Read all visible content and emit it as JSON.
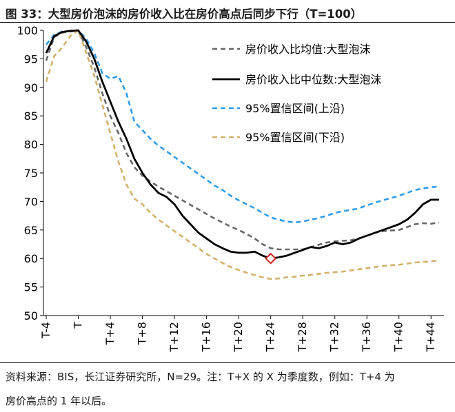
{
  "title": "图 33：大型房价泡沫的房价收入比在房价高点后同步下行（T=100）",
  "notes": [
    "资料来源：BIS，长江证券研究所，N=29。注：T+X 的 X 为季度数，例如：T+4 为",
    "房价高点的 1 年以后。"
  ],
  "chart_data": {
    "type": "line",
    "ylim": [
      50,
      100
    ],
    "yticks": [
      50,
      55,
      60,
      65,
      70,
      75,
      80,
      85,
      90,
      95,
      100
    ],
    "xlim": [
      -4,
      45
    ],
    "xticks": [
      {
        "x": -4,
        "label": "T-4"
      },
      {
        "x": 0,
        "label": "T"
      },
      {
        "x": 4,
        "label": "T+4"
      },
      {
        "x": 8,
        "label": "T+8"
      },
      {
        "x": 12,
        "label": "T+12"
      },
      {
        "x": 16,
        "label": "T+16"
      },
      {
        "x": 20,
        "label": "T+20"
      },
      {
        "x": 24,
        "label": "T+24"
      },
      {
        "x": 28,
        "label": "T+28"
      },
      {
        "x": 32,
        "label": "T+32"
      },
      {
        "x": 36,
        "label": "T+36"
      },
      {
        "x": 40,
        "label": "T+40"
      },
      {
        "x": 44,
        "label": "T+44"
      }
    ],
    "legend_position": "top-right",
    "series": [
      {
        "name": "房价收入比均值:大型泡沫",
        "color": "#666666",
        "style": "dashed",
        "points": [
          [
            -4,
            94.7
          ],
          [
            -3,
            98.8
          ],
          [
            -2,
            99.6
          ],
          [
            -1,
            99.8
          ],
          [
            0,
            100
          ],
          [
            1,
            97
          ],
          [
            2,
            93.5
          ],
          [
            3,
            89
          ],
          [
            4,
            85
          ],
          [
            5,
            82
          ],
          [
            6,
            78.5
          ],
          [
            7,
            76
          ],
          [
            8,
            74.5
          ],
          [
            9,
            73.5
          ],
          [
            10,
            72.6
          ],
          [
            11,
            71.8
          ],
          [
            12,
            71
          ],
          [
            13,
            70.2
          ],
          [
            14,
            69.4
          ],
          [
            15,
            68.6
          ],
          [
            16,
            67.8
          ],
          [
            17,
            67
          ],
          [
            18,
            66.3
          ],
          [
            19,
            65.6
          ],
          [
            20,
            65
          ],
          [
            21,
            64.3
          ],
          [
            22,
            63.5
          ],
          [
            23,
            62.5
          ],
          [
            24,
            61.8
          ],
          [
            25,
            61.6
          ],
          [
            26,
            61.6
          ],
          [
            27,
            61.6
          ],
          [
            28,
            61.6
          ],
          [
            29,
            62
          ],
          [
            30,
            62.4
          ],
          [
            31,
            62.8
          ],
          [
            32,
            63
          ],
          [
            33,
            63.1
          ],
          [
            34,
            63.2
          ],
          [
            35,
            63.5
          ],
          [
            36,
            64
          ],
          [
            37,
            64.5
          ],
          [
            38,
            64.8
          ],
          [
            39,
            64.9
          ],
          [
            40,
            65
          ],
          [
            41,
            65.5
          ],
          [
            42,
            66
          ],
          [
            43,
            66.2
          ],
          [
            44,
            66.1
          ],
          [
            45,
            66.3
          ]
        ]
      },
      {
        "name": "房价收入比中位数:大型泡沫",
        "color": "#000000",
        "style": "solid",
        "points": [
          [
            -4,
            96
          ],
          [
            -3,
            99
          ],
          [
            -2,
            99.7
          ],
          [
            -1,
            99.9
          ],
          [
            0,
            100
          ],
          [
            1,
            98
          ],
          [
            2,
            95
          ],
          [
            3,
            91
          ],
          [
            4,
            87.5
          ],
          [
            5,
            84
          ],
          [
            6,
            81
          ],
          [
            7,
            77.5
          ],
          [
            8,
            75
          ],
          [
            9,
            73
          ],
          [
            10,
            71.5
          ],
          [
            11,
            70.8
          ],
          [
            12,
            69.5
          ],
          [
            13,
            67.5
          ],
          [
            14,
            66
          ],
          [
            15,
            64.5
          ],
          [
            16,
            63.5
          ],
          [
            17,
            62.5
          ],
          [
            18,
            61.8
          ],
          [
            19,
            61.2
          ],
          [
            20,
            61
          ],
          [
            21,
            61
          ],
          [
            22,
            61.2
          ],
          [
            23,
            60.5
          ],
          [
            24,
            60
          ],
          [
            25,
            60.2
          ],
          [
            26,
            60.5
          ],
          [
            27,
            61
          ],
          [
            28,
            61.5
          ],
          [
            29,
            62
          ],
          [
            30,
            61.8
          ],
          [
            31,
            62.2
          ],
          [
            32,
            62.8
          ],
          [
            33,
            62.5
          ],
          [
            34,
            62.8
          ],
          [
            35,
            63.5
          ],
          [
            36,
            64
          ],
          [
            37,
            64.5
          ],
          [
            38,
            65
          ],
          [
            39,
            65.5
          ],
          [
            40,
            66
          ],
          [
            41,
            66.8
          ],
          [
            42,
            68
          ],
          [
            43,
            69.5
          ],
          [
            44,
            70.3
          ],
          [
            45,
            70.3
          ]
        ]
      },
      {
        "name": "95%置信区间(上沿)",
        "color": "#2f9be8",
        "style": "dashed",
        "points": [
          [
            -4,
            97.5
          ],
          [
            -3,
            99.2
          ],
          [
            -2,
            99.8
          ],
          [
            -1,
            99.9
          ],
          [
            0,
            100
          ],
          [
            1,
            98.5
          ],
          [
            2,
            96
          ],
          [
            3,
            92.5
          ],
          [
            4,
            91.5
          ],
          [
            5,
            92
          ],
          [
            6,
            89
          ],
          [
            7,
            84
          ],
          [
            8,
            82.5
          ],
          [
            9,
            81
          ],
          [
            10,
            79.8
          ],
          [
            11,
            78.8
          ],
          [
            12,
            77.8
          ],
          [
            13,
            76.8
          ],
          [
            14,
            75.8
          ],
          [
            15,
            74.8
          ],
          [
            16,
            73.8
          ],
          [
            17,
            72.8
          ],
          [
            18,
            72
          ],
          [
            19,
            71
          ],
          [
            20,
            70.2
          ],
          [
            21,
            69.5
          ],
          [
            22,
            68.8
          ],
          [
            23,
            68
          ],
          [
            24,
            67.2
          ],
          [
            25,
            66.8
          ],
          [
            26,
            66.5
          ],
          [
            27,
            66.3
          ],
          [
            28,
            66.5
          ],
          [
            29,
            66.8
          ],
          [
            30,
            67.1
          ],
          [
            31,
            67.5
          ],
          [
            32,
            68
          ],
          [
            33,
            68.3
          ],
          [
            34,
            68.5
          ],
          [
            35,
            68.8
          ],
          [
            36,
            69.3
          ],
          [
            37,
            69.8
          ],
          [
            38,
            70.2
          ],
          [
            39,
            70.6
          ],
          [
            40,
            71
          ],
          [
            41,
            71.5
          ],
          [
            42,
            72
          ],
          [
            43,
            72.3
          ],
          [
            44,
            72.5
          ],
          [
            45,
            72.6
          ]
        ]
      },
      {
        "name": "95%置信区间(下沿)",
        "color": "#d4b06a",
        "style": "dashed",
        "points": [
          [
            -4,
            91
          ],
          [
            -3,
            95.5
          ],
          [
            -2,
            97
          ],
          [
            -1,
            99
          ],
          [
            0,
            100
          ],
          [
            1,
            96
          ],
          [
            2,
            92
          ],
          [
            3,
            87
          ],
          [
            4,
            82
          ],
          [
            5,
            77
          ],
          [
            6,
            73
          ],
          [
            7,
            70.5
          ],
          [
            8,
            69.5
          ],
          [
            9,
            68
          ],
          [
            10,
            66.8
          ],
          [
            11,
            65.8
          ],
          [
            12,
            64.8
          ],
          [
            13,
            63.8
          ],
          [
            14,
            62.8
          ],
          [
            15,
            61.8
          ],
          [
            16,
            60.8
          ],
          [
            17,
            60
          ],
          [
            18,
            59.2
          ],
          [
            19,
            58.5
          ],
          [
            20,
            58
          ],
          [
            21,
            57.5
          ],
          [
            22,
            57.1
          ],
          [
            23,
            56.7
          ],
          [
            24,
            56.4
          ],
          [
            25,
            56.5
          ],
          [
            26,
            56.7
          ],
          [
            27,
            56.8
          ],
          [
            28,
            57
          ],
          [
            29,
            57.1
          ],
          [
            30,
            57.3
          ],
          [
            31,
            57.5
          ],
          [
            32,
            57.6
          ],
          [
            33,
            57.7
          ],
          [
            34,
            57.9
          ],
          [
            35,
            58.1
          ],
          [
            36,
            58.3
          ],
          [
            37,
            58.5
          ],
          [
            38,
            58.7
          ],
          [
            39,
            58.8
          ],
          [
            40,
            58.9
          ],
          [
            41,
            59.1
          ],
          [
            42,
            59.3
          ],
          [
            43,
            59.4
          ],
          [
            44,
            59.5
          ],
          [
            45,
            59.7
          ]
        ]
      }
    ],
    "marker": {
      "x": 24,
      "y": 60,
      "shape": "diamond",
      "color": "#cc2222"
    }
  }
}
